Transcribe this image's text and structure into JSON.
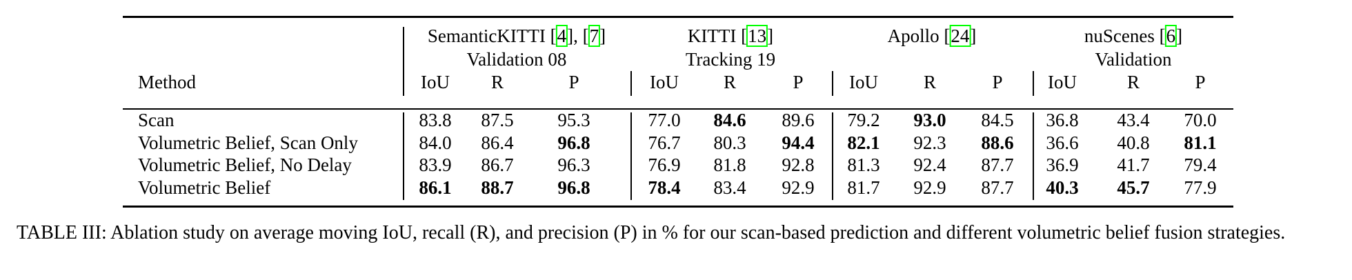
{
  "table": {
    "groups": [
      {
        "name_pre": "SemanticKITTI [",
        "ref1": "4",
        "name_mid": "], [",
        "ref2": "7",
        "name_post": "]",
        "split": "Validation 08"
      },
      {
        "name_pre": "KITTI [",
        "ref1": "13",
        "name_post": "]",
        "split": "Tracking 19"
      },
      {
        "name_pre": "Apollo [",
        "ref1": "24",
        "name_post": "]",
        "split": ""
      },
      {
        "name_pre": "nuScenes [",
        "ref1": "6",
        "name_post": "]",
        "split": "Validation"
      }
    ],
    "method_header": "Method",
    "metric_headers": [
      "IoU",
      "R",
      "P"
    ],
    "rows": [
      {
        "method": "Scan",
        "values": [
          "83.8",
          "87.5",
          "95.3",
          "77.0",
          "84.6",
          "89.6",
          "79.2",
          "93.0",
          "84.5",
          "36.8",
          "43.4",
          "70.0"
        ],
        "bold": [
          false,
          false,
          false,
          false,
          true,
          false,
          false,
          true,
          false,
          false,
          false,
          false
        ]
      },
      {
        "method": "Volumetric Belief, Scan Only",
        "values": [
          "84.0",
          "86.4",
          "96.8",
          "76.7",
          "80.3",
          "94.4",
          "82.1",
          "92.3",
          "88.6",
          "36.6",
          "40.8",
          "81.1"
        ],
        "bold": [
          false,
          false,
          true,
          false,
          false,
          true,
          true,
          false,
          true,
          false,
          false,
          true
        ]
      },
      {
        "method": "Volumetric Belief, No Delay",
        "values": [
          "83.9",
          "86.7",
          "96.3",
          "76.9",
          "81.8",
          "92.8",
          "81.3",
          "92.4",
          "87.7",
          "36.9",
          "41.7",
          "79.4"
        ],
        "bold": [
          false,
          false,
          false,
          false,
          false,
          false,
          false,
          false,
          false,
          false,
          false,
          false
        ]
      },
      {
        "method": "Volumetric Belief",
        "values": [
          "86.1",
          "88.7",
          "96.8",
          "78.4",
          "83.4",
          "92.9",
          "81.7",
          "92.9",
          "87.7",
          "40.3",
          "45.7",
          "77.9"
        ],
        "bold": [
          true,
          true,
          true,
          true,
          false,
          false,
          false,
          false,
          false,
          true,
          true,
          false
        ]
      }
    ]
  },
  "caption": "TABLE III: Ablation study on average moving IoU, recall (R), and precision (P) in % for our scan-based prediction and different volumetric belief fusion strategies."
}
